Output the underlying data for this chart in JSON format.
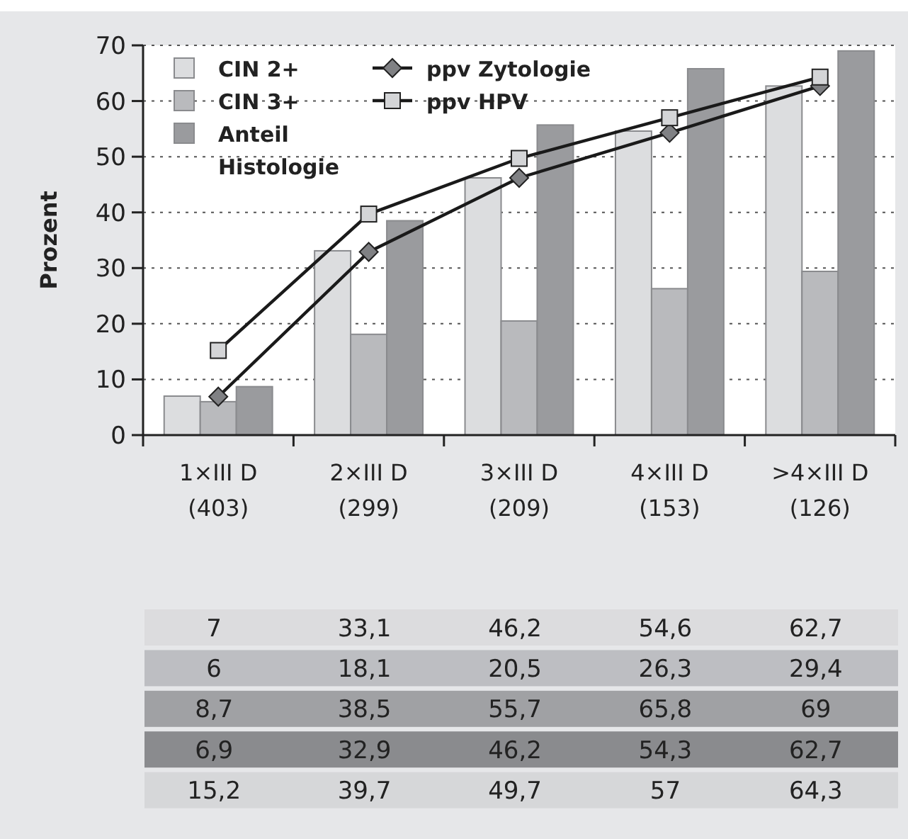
{
  "chart_data": {
    "type": "bar",
    "ylabel": "Prozent",
    "categories": [
      "1×III D\n(403)",
      "2×III D\n(299)",
      "3×III D\n(209)",
      "4×III D\n(153)",
      ">4×III D\n(126)"
    ],
    "ylim": [
      0,
      70
    ],
    "yticks": [
      0,
      10,
      20,
      30,
      40,
      50,
      60,
      70
    ],
    "grid": "y",
    "legend": "top left",
    "data_labels": true,
    "series": [
      {
        "name": "CIN 2+",
        "color": "#dcdddf",
        "values": [
          7,
          33.1,
          46.2,
          54.6,
          62.7
        ],
        "value_labels": [
          "7",
          "33,1",
          "46,2",
          "54,6",
          "62,7"
        ]
      },
      {
        "name": "CIN 3+",
        "color": "#b9babd",
        "values": [
          6,
          18.1,
          20.5,
          26.3,
          29.4
        ],
        "value_labels": [
          "6",
          "18,1",
          "20,5",
          "26,3",
          "29,4"
        ]
      },
      {
        "name": "Anteil Histologie",
        "color": "#9a9b9e",
        "values": [
          8.7,
          38.5,
          55.7,
          65.8,
          69
        ],
        "value_labels": [
          "8,7",
          "38,5",
          "55,7",
          "65,8",
          "69"
        ]
      },
      {
        "name": "ppv Zytologie",
        "type": "line",
        "marker": "diamond",
        "color": "#808184",
        "values": [
          6.9,
          32.9,
          46.2,
          54.3,
          62.7
        ],
        "value_labels": [
          "6,9",
          "32,9",
          "46,2",
          "54,3",
          "62,7"
        ]
      },
      {
        "name": "ppv HPV",
        "type": "line",
        "marker": "square",
        "color": "#d4d5d7",
        "values": [
          15.2,
          39.7,
          49.7,
          57,
          64.3
        ],
        "value_labels": [
          "15,2",
          "39,7",
          "49,7",
          "57",
          "64,3"
        ]
      }
    ]
  }
}
